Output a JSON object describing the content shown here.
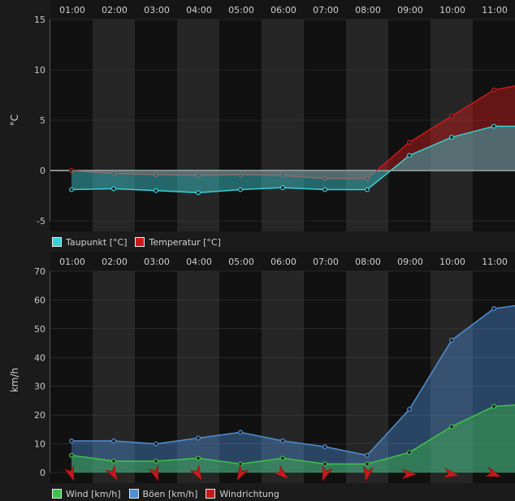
{
  "chart_data": [
    {
      "type": "area",
      "title": "",
      "xlabel": "",
      "ylabel": "°C",
      "categories": [
        "01:00",
        "02:00",
        "03:00",
        "04:00",
        "05:00",
        "06:00",
        "07:00",
        "08:00",
        "09:00",
        "10:00",
        "11:00"
      ],
      "ylim": [
        -5,
        15
      ],
      "yticks": [
        -5,
        0,
        5,
        10,
        15
      ],
      "grid": true,
      "legend_position": "bottom-left",
      "series": [
        {
          "name": "Taupunkt [°C]",
          "color": "#39d0d6",
          "x": [
            0.5,
            1.5,
            2.5,
            3.5,
            4.5,
            5.5,
            6.5,
            7.5,
            8.5,
            9.5,
            10.5,
            11.5
          ],
          "values": [
            -1.9,
            -1.8,
            -2.0,
            -2.2,
            -1.9,
            -1.7,
            -1.9,
            -1.9,
            1.5,
            3.3,
            4.4,
            4.4
          ]
        },
        {
          "name": "Temperatur [°C]",
          "color": "#cc1a1a",
          "x": [
            0.5,
            1.5,
            2.5,
            3.5,
            4.5,
            5.5,
            6.5,
            7.5,
            8.5,
            9.5,
            10.5,
            11.5
          ],
          "values": [
            0.0,
            -0.3,
            -0.4,
            -0.5,
            -0.4,
            -0.5,
            -0.8,
            -0.8,
            2.8,
            5.4,
            8.0,
            8.8
          ]
        }
      ]
    },
    {
      "type": "area",
      "title": "",
      "xlabel": "",
      "ylabel": "km/h",
      "categories": [
        "01:00",
        "02:00",
        "03:00",
        "04:00",
        "05:00",
        "06:00",
        "07:00",
        "08:00",
        "09:00",
        "10:00",
        "11:00"
      ],
      "ylim": [
        0,
        70
      ],
      "yticks": [
        0,
        10,
        20,
        30,
        40,
        50,
        60,
        70
      ],
      "grid": true,
      "legend_position": "bottom-left",
      "series": [
        {
          "name": "Wind [km/h]",
          "color": "#3fc24a",
          "x": [
            0.5,
            1.5,
            2.5,
            3.5,
            4.5,
            5.5,
            6.5,
            7.5,
            8.5,
            9.5,
            10.5,
            11.5
          ],
          "values": [
            6,
            4,
            4,
            5,
            3,
            5,
            3,
            3,
            7,
            16,
            23,
            24
          ]
        },
        {
          "name": "Böen [km/h]",
          "color": "#4e8fd6",
          "x": [
            0.5,
            1.5,
            2.5,
            3.5,
            4.5,
            5.5,
            6.5,
            7.5,
            8.5,
            9.5,
            10.5,
            11.5
          ],
          "values": [
            11,
            11,
            10,
            12,
            14,
            11,
            9,
            6,
            22,
            46,
            57,
            59
          ]
        },
        {
          "name": "Windrichtung",
          "color": "#c51a1a",
          "x": [
            0.5,
            1.5,
            2.5,
            3.5,
            4.5,
            5.5,
            6.5,
            7.5,
            8.5,
            9.5,
            10.5,
            11.5
          ],
          "values": [
            160,
            150,
            160,
            150,
            210,
            130,
            200,
            190,
            90,
            100,
            110,
            100
          ]
        }
      ]
    }
  ]
}
